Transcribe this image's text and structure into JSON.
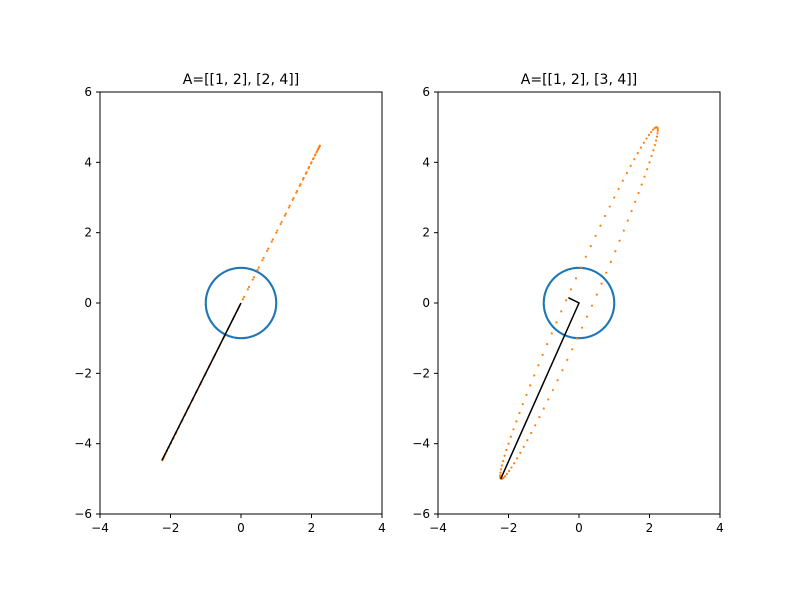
{
  "figure": {
    "background": "#ffffff"
  },
  "colors": {
    "unit_circle": "#1f77b4",
    "transformed": "#ff7f0e",
    "eigen": "#000000"
  },
  "chart_data": [
    {
      "type": "scatter",
      "title": "A=[[1, 2], [2, 4]]",
      "matrix": [
        [
          1,
          2
        ],
        [
          2,
          4
        ]
      ],
      "xlim": [
        -4,
        4
      ],
      "ylim": [
        -6,
        6
      ],
      "xticks": [
        -4,
        -2,
        0,
        2,
        4
      ],
      "yticks": [
        -6,
        -4,
        -2,
        0,
        2,
        4,
        6
      ],
      "series": [
        {
          "kind": "unit-circle-points",
          "points": 200,
          "radius": 1
        },
        {
          "kind": "transformed-points",
          "points": 100,
          "extent_x": [
            -2.24,
            2.24
          ],
          "extent_y": [
            -4.47,
            4.47
          ]
        }
      ],
      "line": [
        [
          0,
          0
        ],
        [
          -2.24,
          -4.47
        ]
      ]
    },
    {
      "type": "scatter",
      "title": "A=[[1, 2], [3, 4]]",
      "matrix": [
        [
          1,
          2
        ],
        [
          3,
          4
        ]
      ],
      "xlim": [
        -4,
        4
      ],
      "ylim": [
        -6,
        6
      ],
      "xticks": [
        -4,
        -2,
        0,
        2,
        4
      ],
      "yticks": [
        -6,
        -4,
        -2,
        0,
        2,
        4,
        6
      ],
      "series": [
        {
          "kind": "unit-circle-points",
          "points": 200,
          "radius": 1
        },
        {
          "kind": "transformed-points",
          "points": 100,
          "extent_x": [
            -2.24,
            2.24
          ],
          "extent_y": [
            -5.0,
            5.0
          ]
        }
      ],
      "line": [
        [
          -0.3,
          0.15
        ],
        [
          0,
          0
        ],
        [
          -2.22,
          -5.0
        ]
      ]
    }
  ]
}
